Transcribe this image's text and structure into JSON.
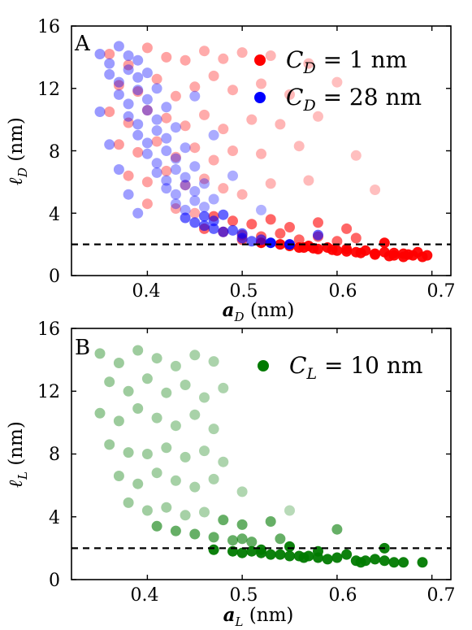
{
  "chart_data": [
    {
      "type": "scatter",
      "panel_label": "A",
      "xlabel": "a_D (nm)",
      "ylabel": "ℓ_D (nm)",
      "xlim": [
        0.32,
        0.72
      ],
      "ylim": [
        0,
        16
      ],
      "x_ticks": [
        "0.4",
        "0.5",
        "0.6",
        "0.7"
      ],
      "y_ticks": [
        "0",
        "4",
        "8",
        "12",
        "16"
      ],
      "reference_line": {
        "y": 2,
        "style": "dashed",
        "color": "#000000"
      },
      "legend_position": "top-right",
      "grid": false,
      "series": [
        {
          "name": "C_D = 1 nm",
          "color": "#ff0000",
          "points": [
            [
              0.36,
              14.2
            ],
            [
              0.38,
              13.5
            ],
            [
              0.4,
              14.6
            ],
            [
              0.42,
              14.0
            ],
            [
              0.44,
              13.8
            ],
            [
              0.46,
              14.4
            ],
            [
              0.48,
              13.9
            ],
            [
              0.5,
              14.3
            ],
            [
              0.53,
              14.1
            ],
            [
              0.57,
              13.6
            ],
            [
              0.37,
              12.2
            ],
            [
              0.39,
              11.8
            ],
            [
              0.41,
              12.6
            ],
            [
              0.43,
              11.5
            ],
            [
              0.45,
              12.1
            ],
            [
              0.47,
              12.8
            ],
            [
              0.49,
              11.9
            ],
            [
              0.52,
              12.3
            ],
            [
              0.55,
              11.6
            ],
            [
              0.6,
              12.4
            ],
            [
              0.36,
              10.5
            ],
            [
              0.38,
              9.8
            ],
            [
              0.4,
              10.6
            ],
            [
              0.42,
              10.1
            ],
            [
              0.44,
              9.6
            ],
            [
              0.46,
              10.3
            ],
            [
              0.48,
              9.4
            ],
            [
              0.51,
              10.0
            ],
            [
              0.54,
              9.7
            ],
            [
              0.58,
              10.2
            ],
            [
              0.37,
              8.4
            ],
            [
              0.39,
              7.9
            ],
            [
              0.41,
              8.6
            ],
            [
              0.43,
              7.6
            ],
            [
              0.45,
              8.2
            ],
            [
              0.47,
              7.4
            ],
            [
              0.49,
              8.0
            ],
            [
              0.52,
              7.8
            ],
            [
              0.56,
              8.3
            ],
            [
              0.62,
              7.7
            ],
            [
              0.38,
              6.4
            ],
            [
              0.4,
              6.0
            ],
            [
              0.42,
              6.7
            ],
            [
              0.44,
              5.8
            ],
            [
              0.46,
              6.2
            ],
            [
              0.48,
              5.6
            ],
            [
              0.5,
              5.2
            ],
            [
              0.53,
              5.9
            ],
            [
              0.57,
              6.1
            ],
            [
              0.64,
              5.5
            ],
            [
              0.4,
              4.6
            ],
            [
              0.43,
              4.3
            ],
            [
              0.45,
              4.0
            ],
            [
              0.47,
              3.8
            ],
            [
              0.49,
              3.5
            ],
            [
              0.51,
              3.3
            ],
            [
              0.53,
              3.6
            ],
            [
              0.55,
              3.1
            ],
            [
              0.58,
              3.4
            ],
            [
              0.61,
              3.0
            ],
            [
              0.46,
              3.0
            ],
            [
              0.48,
              2.8
            ],
            [
              0.5,
              2.6
            ],
            [
              0.52,
              2.5
            ],
            [
              0.54,
              2.7
            ],
            [
              0.56,
              2.3
            ],
            [
              0.58,
              2.5
            ],
            [
              0.6,
              2.2
            ],
            [
              0.62,
              2.4
            ],
            [
              0.65,
              2.1
            ],
            [
              0.5,
              2.3
            ],
            [
              0.52,
              2.1
            ],
            [
              0.54,
              2.0
            ],
            [
              0.55,
              1.9
            ],
            [
              0.56,
              1.8
            ],
            [
              0.57,
              1.9
            ],
            [
              0.58,
              1.7
            ],
            [
              0.59,
              1.8
            ],
            [
              0.6,
              1.6
            ],
            [
              0.61,
              1.7
            ],
            [
              0.62,
              1.5
            ],
            [
              0.63,
              1.6
            ],
            [
              0.64,
              1.4
            ],
            [
              0.65,
              1.5
            ],
            [
              0.66,
              1.3
            ],
            [
              0.67,
              1.4
            ],
            [
              0.68,
              1.3
            ],
            [
              0.69,
              1.2
            ],
            [
              0.695,
              1.3
            ],
            [
              0.685,
              1.5
            ],
            [
              0.67,
              1.2
            ],
            [
              0.655,
              1.25
            ],
            [
              0.64,
              1.35
            ],
            [
              0.625,
              1.45
            ],
            [
              0.61,
              1.55
            ],
            [
              0.595,
              1.65
            ],
            [
              0.575,
              1.75
            ],
            [
              0.565,
              1.8
            ],
            [
              0.675,
              1.35
            ],
            [
              0.66,
              1.45
            ]
          ]
        },
        {
          "name": "C_D = 28 nm",
          "color": "#0000ff",
          "points": [
            [
              0.35,
              14.2
            ],
            [
              0.36,
              13.6
            ],
            [
              0.37,
              14.7
            ],
            [
              0.38,
              14.1
            ],
            [
              0.39,
              13.8
            ],
            [
              0.36,
              12.9
            ],
            [
              0.37,
              12.4
            ],
            [
              0.38,
              13.2
            ],
            [
              0.39,
              12.7
            ],
            [
              0.4,
              13.0
            ],
            [
              0.37,
              11.6
            ],
            [
              0.38,
              11.0
            ],
            [
              0.39,
              11.9
            ],
            [
              0.4,
              11.3
            ],
            [
              0.41,
              12.0
            ],
            [
              0.38,
              10.2
            ],
            [
              0.39,
              9.7
            ],
            [
              0.4,
              10.6
            ],
            [
              0.41,
              10.0
            ],
            [
              0.42,
              10.8
            ],
            [
              0.39,
              9.0
            ],
            [
              0.4,
              8.5
            ],
            [
              0.41,
              9.3
            ],
            [
              0.42,
              8.8
            ],
            [
              0.43,
              9.5
            ],
            [
              0.4,
              7.8
            ],
            [
              0.41,
              7.2
            ],
            [
              0.42,
              8.0
            ],
            [
              0.43,
              7.5
            ],
            [
              0.44,
              8.2
            ],
            [
              0.41,
              6.6
            ],
            [
              0.42,
              6.1
            ],
            [
              0.43,
              6.8
            ],
            [
              0.44,
              6.3
            ],
            [
              0.45,
              7.0
            ],
            [
              0.42,
              5.6
            ],
            [
              0.43,
              5.2
            ],
            [
              0.44,
              5.8
            ],
            [
              0.45,
              5.4
            ],
            [
              0.46,
              5.9
            ],
            [
              0.43,
              4.6
            ],
            [
              0.44,
              4.2
            ],
            [
              0.45,
              4.8
            ],
            [
              0.46,
              4.4
            ],
            [
              0.47,
              4.9
            ],
            [
              0.44,
              3.7
            ],
            [
              0.45,
              3.4
            ],
            [
              0.46,
              3.8
            ],
            [
              0.47,
              3.5
            ],
            [
              0.48,
              3.9
            ],
            [
              0.46,
              3.2
            ],
            [
              0.47,
              3.0
            ],
            [
              0.48,
              2.8
            ],
            [
              0.49,
              2.9
            ],
            [
              0.5,
              2.7
            ],
            [
              0.5,
              2.4
            ],
            [
              0.51,
              2.2
            ],
            [
              0.52,
              2.3
            ],
            [
              0.53,
              2.1
            ],
            [
              0.55,
              2.0
            ],
            [
              0.35,
              10.5
            ],
            [
              0.36,
              8.4
            ],
            [
              0.37,
              6.8
            ],
            [
              0.38,
              5.2
            ],
            [
              0.39,
              4.0
            ],
            [
              0.45,
              11.5
            ],
            [
              0.47,
              9.0
            ],
            [
              0.49,
              6.4
            ],
            [
              0.52,
              4.2
            ],
            [
              0.58,
              2.6
            ]
          ]
        }
      ]
    },
    {
      "type": "scatter",
      "panel_label": "B",
      "xlabel": "a_L (nm)",
      "ylabel": "ℓ_L (nm)",
      "xlim": [
        0.32,
        0.72
      ],
      "ylim": [
        0,
        16
      ],
      "x_ticks": [
        "0.4",
        "0.5",
        "0.6",
        "0.7"
      ],
      "y_ticks": [
        "0",
        "4",
        "8",
        "12",
        "16"
      ],
      "reference_line": {
        "y": 2,
        "style": "dashed",
        "color": "#000000"
      },
      "legend_position": "top-right",
      "grid": false,
      "series": [
        {
          "name": "C_L = 10 nm",
          "color": "#007a00",
          "points": [
            [
              0.35,
              14.4
            ],
            [
              0.37,
              13.8
            ],
            [
              0.39,
              14.6
            ],
            [
              0.41,
              14.1
            ],
            [
              0.43,
              13.6
            ],
            [
              0.45,
              14.3
            ],
            [
              0.47,
              13.9
            ],
            [
              0.36,
              12.6
            ],
            [
              0.38,
              12.0
            ],
            [
              0.4,
              12.8
            ],
            [
              0.42,
              11.9
            ],
            [
              0.44,
              12.4
            ],
            [
              0.46,
              11.6
            ],
            [
              0.48,
              12.2
            ],
            [
              0.35,
              10.6
            ],
            [
              0.37,
              10.1
            ],
            [
              0.39,
              10.9
            ],
            [
              0.41,
              10.3
            ],
            [
              0.43,
              9.8
            ],
            [
              0.45,
              10.5
            ],
            [
              0.47,
              9.6
            ],
            [
              0.36,
              8.6
            ],
            [
              0.38,
              8.1
            ],
            [
              0.4,
              8.0
            ],
            [
              0.42,
              8.4
            ],
            [
              0.44,
              7.8
            ],
            [
              0.46,
              8.2
            ],
            [
              0.48,
              7.5
            ],
            [
              0.37,
              6.6
            ],
            [
              0.39,
              6.1
            ],
            [
              0.41,
              6.8
            ],
            [
              0.43,
              6.3
            ],
            [
              0.45,
              5.9
            ],
            [
              0.47,
              6.4
            ],
            [
              0.5,
              5.6
            ],
            [
              0.38,
              4.9
            ],
            [
              0.4,
              4.4
            ],
            [
              0.42,
              4.6
            ],
            [
              0.44,
              4.1
            ],
            [
              0.46,
              4.3
            ],
            [
              0.48,
              3.8
            ],
            [
              0.5,
              3.5
            ],
            [
              0.53,
              3.7
            ],
            [
              0.41,
              3.4
            ],
            [
              0.43,
              3.1
            ],
            [
              0.45,
              2.9
            ],
            [
              0.47,
              2.7
            ],
            [
              0.49,
              2.5
            ],
            [
              0.51,
              2.4
            ],
            [
              0.54,
              2.6
            ],
            [
              0.47,
              1.9
            ],
            [
              0.49,
              1.8
            ],
            [
              0.5,
              1.7
            ],
            [
              0.51,
              1.8
            ],
            [
              0.52,
              1.7
            ],
            [
              0.53,
              1.6
            ],
            [
              0.54,
              1.6
            ],
            [
              0.55,
              1.5
            ],
            [
              0.56,
              1.5
            ],
            [
              0.565,
              1.4
            ],
            [
              0.57,
              1.5
            ],
            [
              0.58,
              1.4
            ],
            [
              0.59,
              1.3
            ],
            [
              0.6,
              1.4
            ],
            [
              0.62,
              1.2
            ],
            [
              0.625,
              1.1
            ],
            [
              0.63,
              1.2
            ],
            [
              0.65,
              1.2
            ],
            [
              0.66,
              1.1
            ],
            [
              0.67,
              1.1
            ],
            [
              0.69,
              1.1
            ],
            [
              0.5,
              2.6
            ],
            [
              0.52,
              1.9
            ],
            [
              0.55,
              2.1
            ],
            [
              0.58,
              1.8
            ],
            [
              0.61,
              1.6
            ],
            [
              0.64,
              1.3
            ],
            [
              0.55,
              4.4
            ],
            [
              0.6,
              3.2
            ],
            [
              0.65,
              2.0
            ]
          ]
        }
      ]
    }
  ]
}
